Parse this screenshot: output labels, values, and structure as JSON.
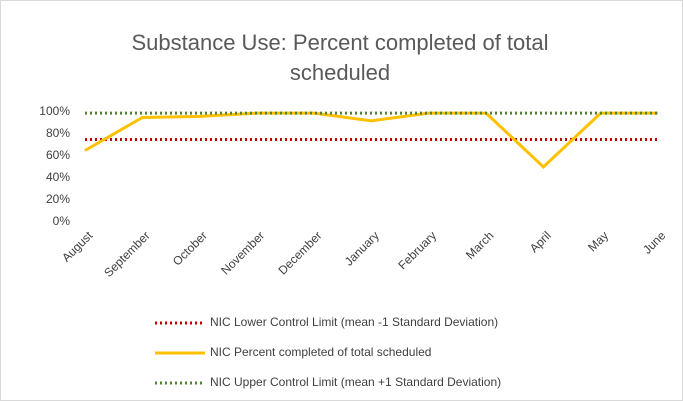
{
  "chart_data": {
    "type": "line",
    "title": "Substance Use: Percent completed of total scheduled",
    "categories": [
      "August",
      "September",
      "October",
      "November",
      "December",
      "January",
      "February",
      "March",
      "April",
      "May",
      "June"
    ],
    "series": [
      {
        "name": "NIC Lower Control Limit (mean -1 Standard Deviation)",
        "color": "#c00000",
        "style": "dotted",
        "values": [
          75,
          75,
          75,
          75,
          75,
          75,
          75,
          75,
          75,
          75,
          75
        ]
      },
      {
        "name": "NIC Percent completed of total scheduled",
        "color": "#ffc000",
        "style": "solid",
        "values": [
          65,
          95,
          96,
          99,
          99,
          92,
          99,
          99,
          50,
          99,
          99
        ]
      },
      {
        "name": "NIC Upper Control Limit (mean +1 Standard Deviation)",
        "color": "#548235",
        "style": "dotted",
        "values": [
          99,
          99,
          99,
          99,
          99,
          99,
          99,
          99,
          99,
          99,
          99
        ]
      }
    ],
    "ylim": [
      0,
      100
    ],
    "yticks": [
      {
        "value": 0,
        "label": "0%"
      },
      {
        "value": 20,
        "label": "20%"
      },
      {
        "value": 40,
        "label": "40%"
      },
      {
        "value": 60,
        "label": "60%"
      },
      {
        "value": 80,
        "label": "80%"
      },
      {
        "value": 100,
        "label": "100%"
      }
    ],
    "grid": false,
    "legend": "bottom"
  }
}
